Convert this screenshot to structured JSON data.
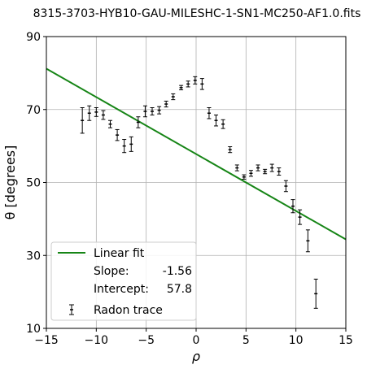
{
  "chart_data": {
    "type": "scatter",
    "title": "8315-3703-HYB10-GAU-MILESHC-1-SN1-MC250-AF1.0.fits",
    "xlabel": "ρ",
    "ylabel": "θ [degrees]",
    "xlim": [
      -15,
      15
    ],
    "ylim": [
      10,
      90
    ],
    "xticks": [
      -15,
      -10,
      -5,
      0,
      5,
      10,
      15
    ],
    "yticks": [
      10,
      30,
      50,
      70,
      90
    ],
    "xtick_labels": [
      "−15",
      "−10",
      "−5",
      "0",
      "5",
      "10",
      "15"
    ],
    "ytick_labels": [
      "10",
      "30",
      "50",
      "70",
      "90"
    ],
    "grid": true,
    "legend_position": "lower-left",
    "fit": {
      "name": "Linear fit",
      "slope_label": "Slope:",
      "slope_value": "-1.56",
      "intercept_label": "Intercept:",
      "intercept_value": "57.8",
      "slope": -1.56,
      "intercept": 57.8,
      "color": "#168516"
    },
    "series": [
      {
        "name": "Radon trace",
        "color": "#000000",
        "points": [
          {
            "x": -11.4,
            "y": 67.0,
            "err": 3.5
          },
          {
            "x": -10.7,
            "y": 69.0,
            "err": 2.0
          },
          {
            "x": -10.0,
            "y": 69.3,
            "err": 1.2
          },
          {
            "x": -9.3,
            "y": 68.5,
            "err": 1.2
          },
          {
            "x": -8.6,
            "y": 66.0,
            "err": 1.0
          },
          {
            "x": -7.9,
            "y": 63.0,
            "err": 1.5
          },
          {
            "x": -7.2,
            "y": 60.0,
            "err": 1.8
          },
          {
            "x": -6.5,
            "y": 60.5,
            "err": 2.0
          },
          {
            "x": -5.8,
            "y": 66.5,
            "err": 1.5
          },
          {
            "x": -5.1,
            "y": 69.5,
            "err": 1.5
          },
          {
            "x": -4.4,
            "y": 69.5,
            "err": 1.0
          },
          {
            "x": -3.7,
            "y": 69.8,
            "err": 1.0
          },
          {
            "x": -3.0,
            "y": 71.5,
            "err": 0.8
          },
          {
            "x": -2.3,
            "y": 73.5,
            "err": 0.8
          },
          {
            "x": -1.5,
            "y": 76.0,
            "err": 0.6
          },
          {
            "x": -0.8,
            "y": 77.0,
            "err": 0.8
          },
          {
            "x": -0.1,
            "y": 78.0,
            "err": 1.0
          },
          {
            "x": 0.6,
            "y": 77.0,
            "err": 1.5
          },
          {
            "x": 1.3,
            "y": 69.0,
            "err": 1.5
          },
          {
            "x": 2.0,
            "y": 67.0,
            "err": 1.5
          },
          {
            "x": 2.7,
            "y": 66.0,
            "err": 1.2
          },
          {
            "x": 3.4,
            "y": 59.0,
            "err": 0.8
          },
          {
            "x": 4.1,
            "y": 54.0,
            "err": 0.8
          },
          {
            "x": 4.8,
            "y": 51.5,
            "err": 0.6
          },
          {
            "x": 5.5,
            "y": 52.5,
            "err": 0.8
          },
          {
            "x": 6.2,
            "y": 54.0,
            "err": 0.8
          },
          {
            "x": 6.9,
            "y": 53.0,
            "err": 0.6
          },
          {
            "x": 7.6,
            "y": 54.0,
            "err": 1.0
          },
          {
            "x": 8.3,
            "y": 53.0,
            "err": 1.0
          },
          {
            "x": 9.0,
            "y": 49.0,
            "err": 1.5
          },
          {
            "x": 9.7,
            "y": 43.5,
            "err": 1.8
          },
          {
            "x": 10.4,
            "y": 40.5,
            "err": 2.0
          },
          {
            "x": 11.2,
            "y": 34.0,
            "err": 3.0
          },
          {
            "x": 12.0,
            "y": 19.5,
            "err": 4.0
          }
        ]
      }
    ]
  }
}
